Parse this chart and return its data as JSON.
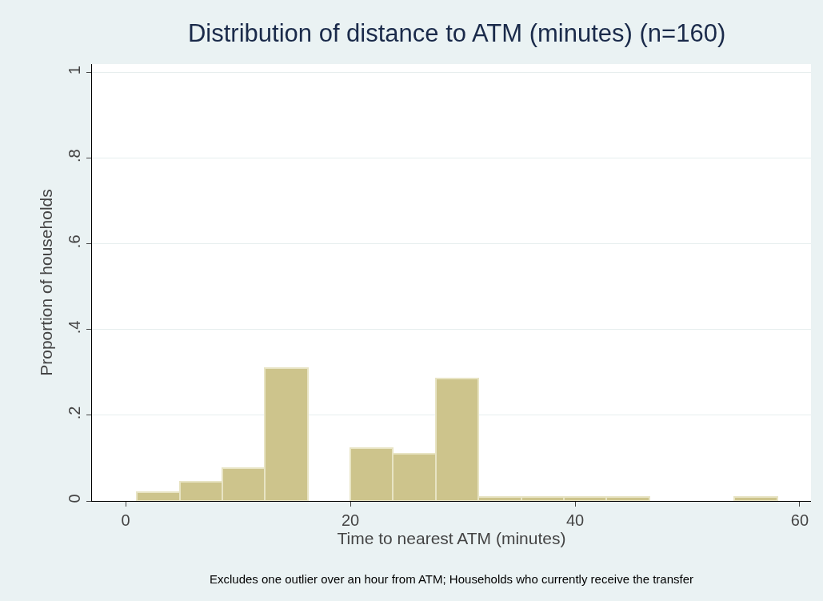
{
  "chart_data": {
    "type": "histogram",
    "title": "Distribution of distance to ATM (minutes) (n=160)",
    "xlabel": "Time to nearest ATM (minutes)",
    "ylabel": "Proportion of households",
    "bins": [
      1,
      4.8,
      8.6,
      12.4,
      16.2,
      20,
      23.8,
      27.6,
      31.4,
      35.2,
      39,
      42.8,
      46.6,
      50.4,
      54.2,
      58
    ],
    "values": [
      0.02,
      0.045,
      0.077,
      0.31,
      0,
      0.123,
      0.11,
      0.285,
      0.01,
      0.01,
      0.01,
      0.01,
      0,
      0,
      0.01
    ],
    "color": "#cdc48c",
    "xlim": [
      -3,
      61
    ],
    "xticks": [
      0,
      20,
      40,
      60
    ],
    "ylim": [
      0,
      1.02
    ],
    "yticks": [
      0,
      {
        "value": 0.2,
        "label": ".2"
      },
      {
        "value": 0.4,
        "label": ".4"
      },
      {
        "value": 0.6,
        "label": ".6"
      },
      {
        "value": 0.8,
        "label": ".8"
      },
      {
        "value": 1,
        "label": "1"
      }
    ],
    "grid": "y",
    "annotations": [
      "Excludes one outlier over an hour from ATM; Households who currently receive the transfer"
    ]
  }
}
